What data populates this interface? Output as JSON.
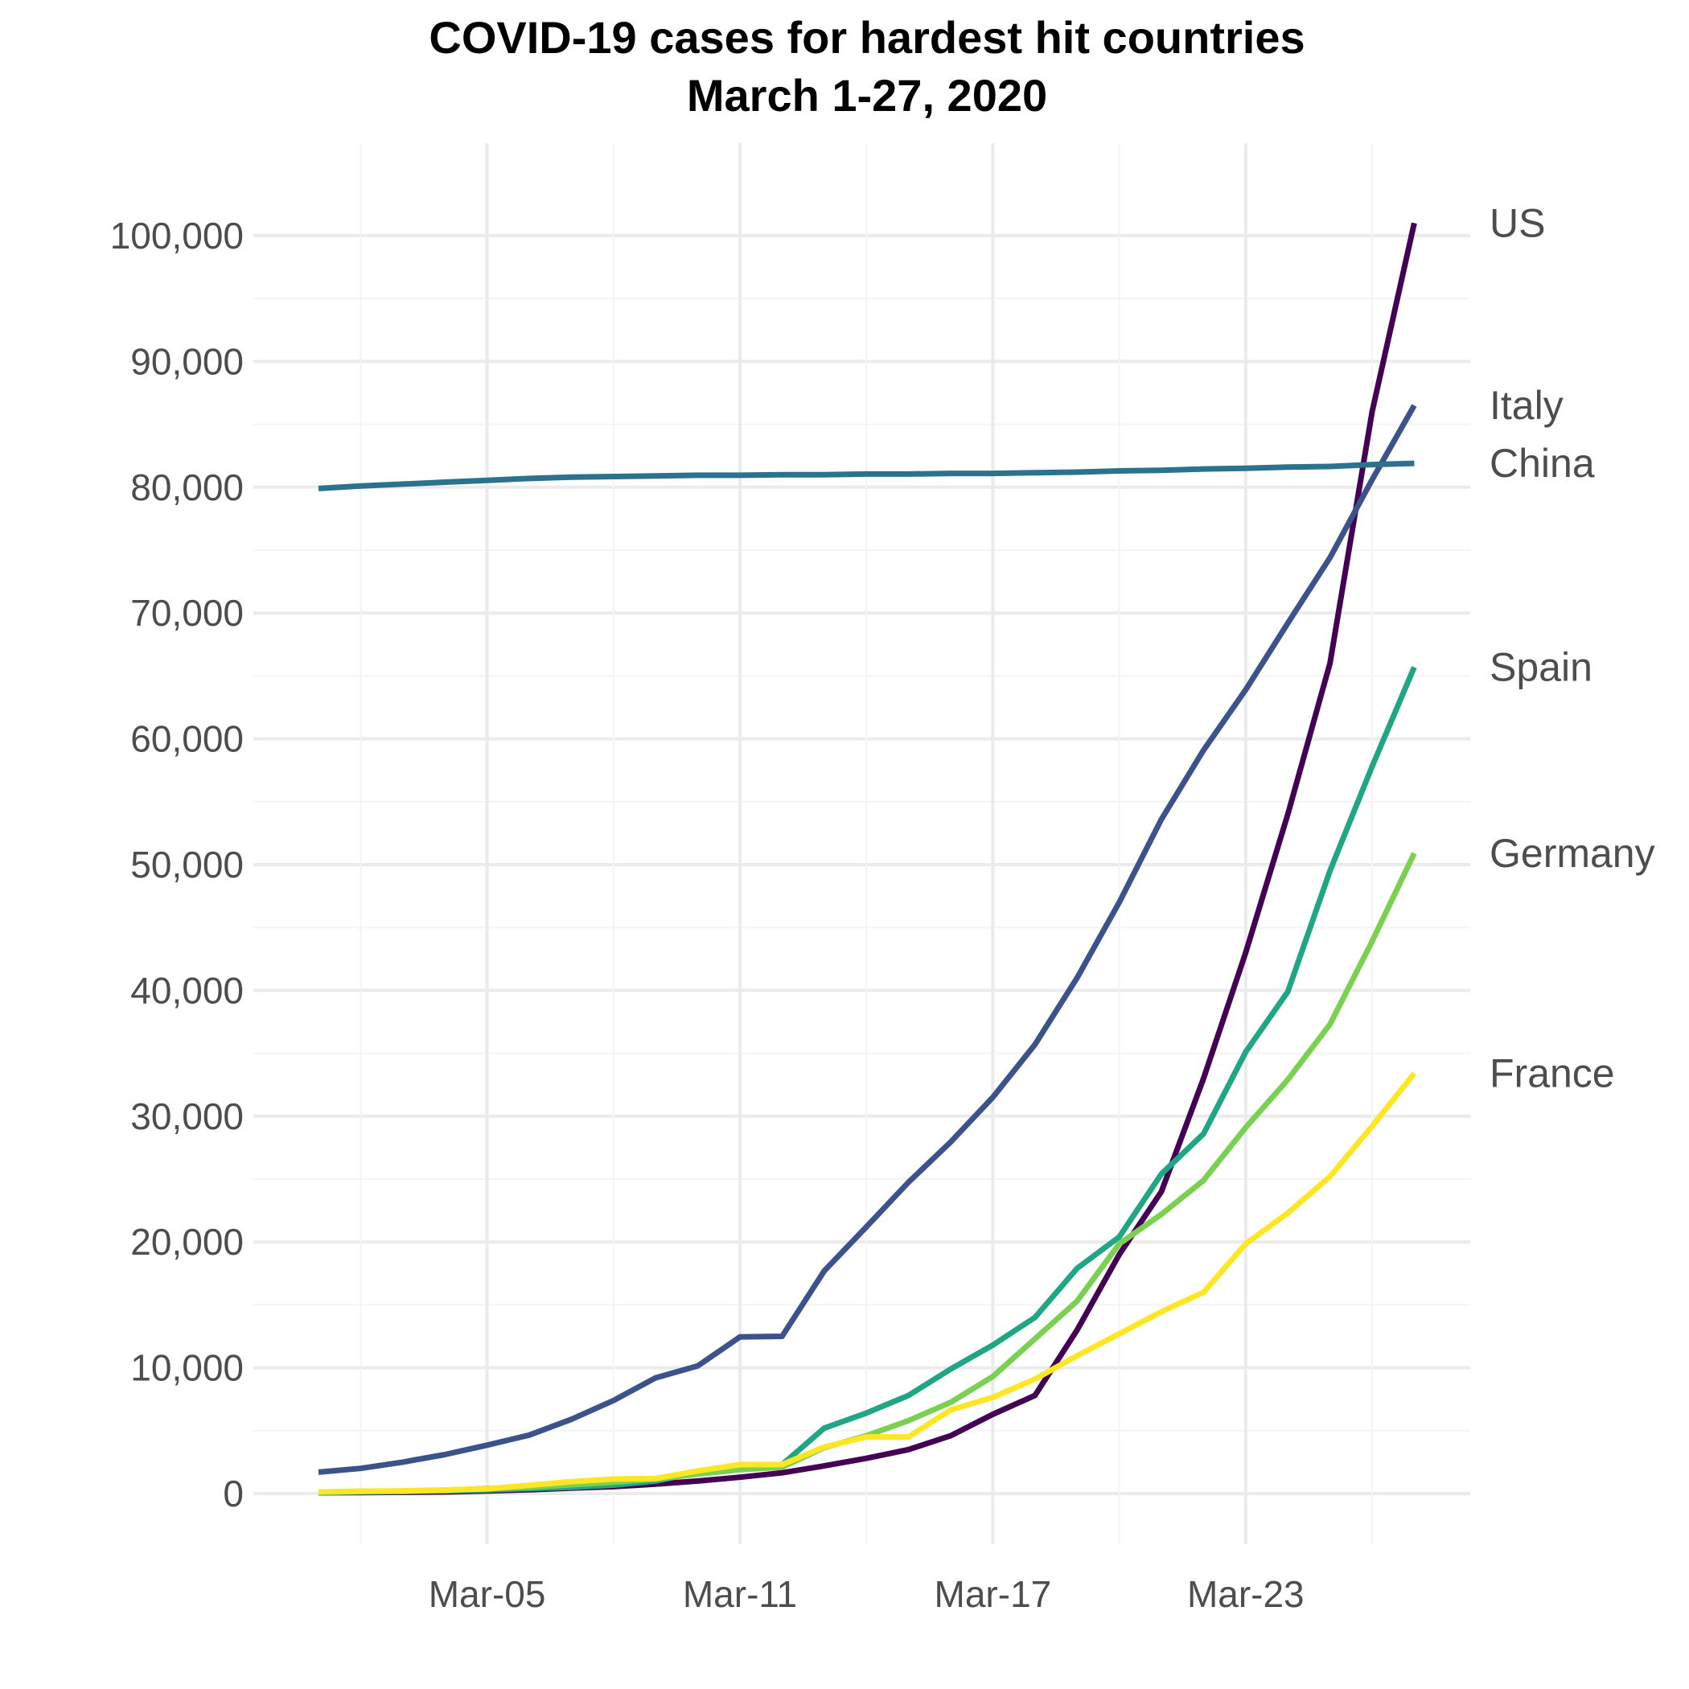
{
  "chart_data": {
    "type": "line",
    "title": [
      "COVID-19 cases for hardest hit countries",
      "March 1-27, 2020"
    ],
    "xlabel": "",
    "ylabel": "",
    "grid": true,
    "legend": "direct labels at line ends (right)",
    "x_start": "2020-03-01",
    "x_end": "2020-03-27",
    "xlim": [
      "2020-03-01",
      "2020-03-27"
    ],
    "ylim": [
      0,
      102000
    ],
    "x_ticks": [
      {
        "date": "2020-03-05",
        "label": "Mar-05"
      },
      {
        "date": "2020-03-11",
        "label": "Mar-11"
      },
      {
        "date": "2020-03-17",
        "label": "Mar-17"
      },
      {
        "date": "2020-03-23",
        "label": "Mar-23"
      }
    ],
    "y_ticks": [
      {
        "value": 0,
        "label": "0"
      },
      {
        "value": 10000,
        "label": "10,000"
      },
      {
        "value": 20000,
        "label": "20,000"
      },
      {
        "value": 30000,
        "label": "30,000"
      },
      {
        "value": 40000,
        "label": "40,000"
      },
      {
        "value": 50000,
        "label": "50,000"
      },
      {
        "value": 60000,
        "label": "60,000"
      },
      {
        "value": 70000,
        "label": "70,000"
      },
      {
        "value": 80000,
        "label": "80,000"
      },
      {
        "value": 90000,
        "label": "90,000"
      },
      {
        "value": 100000,
        "label": "100,000"
      }
    ],
    "series": [
      {
        "name": "US",
        "color": "#440154",
        "values": [
          70,
          80,
          100,
          130,
          210,
          300,
          430,
          550,
          750,
          1000,
          1300,
          1650,
          2200,
          2800,
          3500,
          4600,
          6300,
          7800,
          13000,
          19000,
          24000,
          33000,
          43000,
          54000,
          66000,
          86000,
          101000
        ]
      },
      {
        "name": "Italy",
        "color": "#3b528b",
        "values": [
          1700,
          2000,
          2500,
          3100,
          3850,
          4650,
          5900,
          7400,
          9200,
          10150,
          12450,
          12500,
          17700,
          21200,
          24750,
          27950,
          31500,
          35700,
          41000,
          47000,
          53600,
          59100,
          63900,
          69200,
          74400,
          80600,
          86500
        ]
      },
      {
        "name": "China",
        "color": "#2c728e",
        "values": [
          79900,
          80100,
          80250,
          80400,
          80550,
          80700,
          80800,
          80850,
          80900,
          80950,
          80950,
          81000,
          81000,
          81050,
          81050,
          81100,
          81100,
          81150,
          81200,
          81300,
          81350,
          81450,
          81500,
          81600,
          81650,
          81800,
          81900
        ]
      },
      {
        "name": "Spain",
        "color": "#21a685",
        "values": [
          80,
          120,
          160,
          220,
          280,
          400,
          500,
          670,
          1000,
          1700,
          2250,
          2300,
          5200,
          6400,
          7800,
          9900,
          11800,
          14000,
          17900,
          20400,
          25400,
          28600,
          35100,
          39900,
          49500,
          57800,
          65700
        ]
      },
      {
        "name": "Germany",
        "color": "#7ad151",
        "values": [
          120,
          160,
          200,
          260,
          400,
          500,
          700,
          900,
          1150,
          1550,
          1900,
          2100,
          3650,
          4600,
          5800,
          7250,
          9300,
          12300,
          15300,
          19850,
          22200,
          24900,
          29100,
          32900,
          37300,
          43900,
          50900
        ]
      },
      {
        "name": "France",
        "color": "#fde725",
        "values": [
          120,
          190,
          210,
          290,
          380,
          650,
          950,
          1150,
          1200,
          1800,
          2300,
          2300,
          3700,
          4500,
          4500,
          6650,
          7650,
          9100,
          10950,
          12700,
          14450,
          16000,
          19850,
          22300,
          25200,
          29200,
          33400
        ]
      }
    ]
  }
}
